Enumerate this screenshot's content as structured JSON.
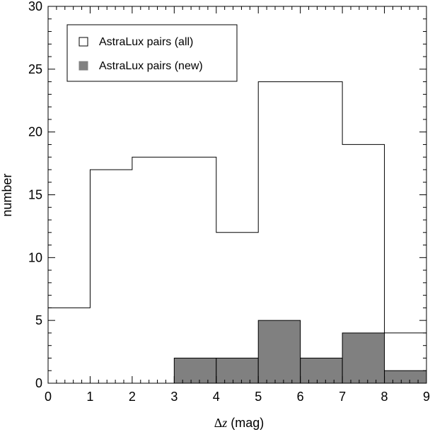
{
  "chart_data": {
    "type": "histogram",
    "xlabel": "Δz (mag)",
    "ylabel": "number",
    "xlim": [
      0,
      9
    ],
    "ylim": [
      0,
      30
    ],
    "x_ticks": [
      0,
      1,
      2,
      3,
      4,
      5,
      6,
      7,
      8,
      9
    ],
    "y_ticks": [
      0,
      5,
      10,
      15,
      20,
      25,
      30
    ],
    "bin_edges": [
      0,
      1,
      2,
      3,
      4,
      5,
      6,
      7,
      8,
      9
    ],
    "series": [
      {
        "name": "AstraLux pairs (all)",
        "style": "step",
        "color": "#000000",
        "values": [
          6,
          17,
          18,
          18,
          12,
          24,
          24,
          19,
          4
        ]
      },
      {
        "name": "AstraLux pairs (new)",
        "style": "filled",
        "color": "#808080",
        "values": [
          0,
          0,
          0,
          2,
          2,
          5,
          2,
          4,
          1
        ]
      }
    ],
    "legend_position": "top-left",
    "grid": false
  }
}
